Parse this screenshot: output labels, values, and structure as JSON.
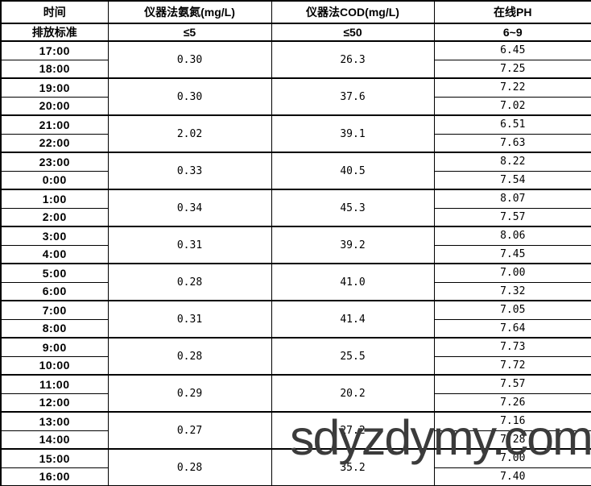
{
  "colors": {
    "background": "#ffffff",
    "border": "#000000",
    "text": "#000000",
    "watermark": "#3b3b3b"
  },
  "watermark": {
    "text": "sdyzdymy.com"
  },
  "table": {
    "headers": [
      "时间",
      "仪器法氨氮(mg/L)",
      "仪器法COD(mg/L)",
      "在线PH"
    ],
    "standards": {
      "label": "排放标准",
      "nh3": "≤5",
      "cod": "≤50",
      "ph": "6~9"
    },
    "groups": [
      {
        "times": [
          "17:00",
          "18:00"
        ],
        "nh3": "0.30",
        "cod": "26.3",
        "ph": [
          "6.45",
          "7.25"
        ]
      },
      {
        "times": [
          "19:00",
          "20:00"
        ],
        "nh3": "0.30",
        "cod": "37.6",
        "ph": [
          "7.22",
          "7.02"
        ]
      },
      {
        "times": [
          "21:00",
          "22:00"
        ],
        "nh3": "2.02",
        "cod": "39.1",
        "ph": [
          "6.51",
          "7.63"
        ]
      },
      {
        "times": [
          "23:00",
          "0:00"
        ],
        "nh3": "0.33",
        "cod": "40.5",
        "ph": [
          "8.22",
          "7.54"
        ]
      },
      {
        "times": [
          "1:00",
          "2:00"
        ],
        "nh3": "0.34",
        "cod": "45.3",
        "ph": [
          "8.07",
          "7.57"
        ]
      },
      {
        "times": [
          "3:00",
          "4:00"
        ],
        "nh3": "0.31",
        "cod": "39.2",
        "ph": [
          "8.06",
          "7.45"
        ]
      },
      {
        "times": [
          "5:00",
          "6:00"
        ],
        "nh3": "0.28",
        "cod": "41.0",
        "ph": [
          "7.00",
          "7.32"
        ]
      },
      {
        "times": [
          "7:00",
          "8:00"
        ],
        "nh3": "0.31",
        "cod": "41.4",
        "ph": [
          "7.05",
          "7.64"
        ]
      },
      {
        "times": [
          "9:00",
          "10:00"
        ],
        "nh3": "0.28",
        "cod": "25.5",
        "ph": [
          "7.73",
          "7.72"
        ]
      },
      {
        "times": [
          "11:00",
          "12:00"
        ],
        "nh3": "0.29",
        "cod": "20.2",
        "ph": [
          "7.57",
          "7.26"
        ]
      },
      {
        "times": [
          "13:00",
          "14:00"
        ],
        "nh3": "0.27",
        "cod": "27.2",
        "ph": [
          "7.16",
          "7.28"
        ]
      },
      {
        "times": [
          "15:00",
          "16:00"
        ],
        "nh3": "0.28",
        "cod": "35.2",
        "ph": [
          "7.00",
          "7.40"
        ]
      }
    ]
  }
}
